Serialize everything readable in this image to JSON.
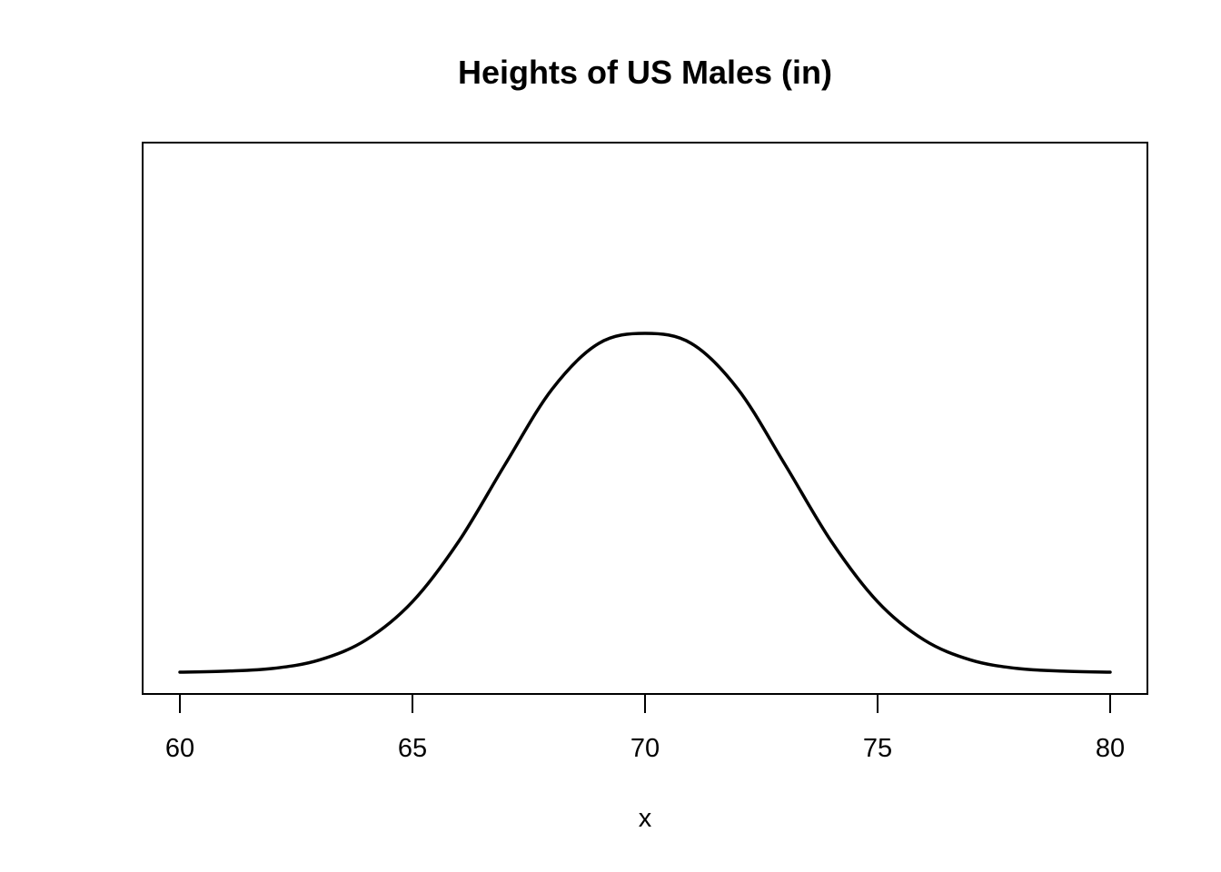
{
  "chart_data": {
    "type": "line",
    "title": "Heights of US Males (in)",
    "xlabel": "x",
    "ylabel": "",
    "xlim": [
      60,
      80
    ],
    "ylim": [
      0,
      0.1995
    ],
    "x_ticks": [
      "60",
      "65",
      "70",
      "75",
      "80"
    ],
    "x_tick_values": [
      60,
      65,
      70,
      75,
      80
    ],
    "y_axis_shown": false,
    "grid": false,
    "legend": "none",
    "series": [
      {
        "color": "#000000",
        "x": [
          60,
          61,
          62,
          63,
          64,
          65,
          66,
          67,
          68,
          69,
          70,
          71,
          72,
          73,
          74,
          75,
          76,
          77,
          78,
          79,
          80
        ],
        "y": [
          0.0,
          0.0003,
          0.0011,
          0.0036,
          0.0095,
          0.0208,
          0.0387,
          0.0615,
          0.0835,
          0.097,
          0.1,
          0.097,
          0.0835,
          0.0615,
          0.0387,
          0.0208,
          0.0095,
          0.0036,
          0.0011,
          0.0003,
          0.0
        ]
      }
    ]
  }
}
